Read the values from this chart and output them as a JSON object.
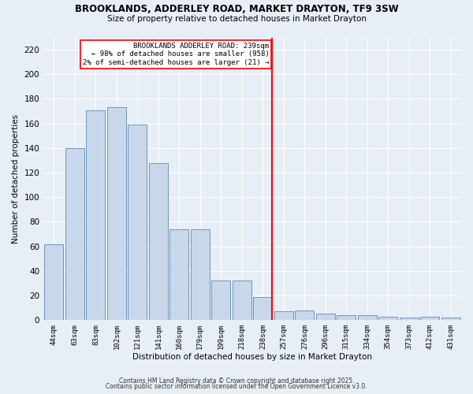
{
  "title": "BROOKLANDS, ADDERLEY ROAD, MARKET DRAYTON, TF9 3SW",
  "subtitle": "Size of property relative to detached houses in Market Drayton",
  "xlabel": "Distribution of detached houses by size in Market Drayton",
  "ylabel": "Number of detached properties",
  "bar_color": "#c8d8ea",
  "bar_edge_color": "#5a8ab5",
  "bar_values": [
    62,
    140,
    171,
    173,
    159,
    128,
    74,
    74,
    32,
    32,
    19,
    7,
    8,
    5,
    4,
    4,
    3,
    2,
    3,
    2
  ],
  "x_labels": [
    "44sqm",
    "63sqm",
    "83sqm",
    "102sqm",
    "121sqm",
    "141sqm",
    "160sqm",
    "179sqm",
    "199sqm",
    "218sqm",
    "238sqm",
    "257sqm",
    "276sqm",
    "296sqm",
    "315sqm",
    "334sqm",
    "354sqm",
    "373sqm",
    "412sqm",
    "431sqm"
  ],
  "vline_x": 10.45,
  "vline_color": "red",
  "annotation_text": "BROOKLANDS ADDERLEY ROAD: 239sqm\n← 98% of detached houses are smaller (958)\n2% of semi-detached houses are larger (21) →",
  "annotation_box_color": "white",
  "annotation_box_edge": "red",
  "footer1": "Contains HM Land Registry data © Crown copyright and database right 2025.",
  "footer2": "Contains public sector information licensed under the Open Government Licence v3.0.",
  "bg_color": "#e8eef5",
  "ylim": [
    0,
    230
  ],
  "yticks": [
    0,
    20,
    40,
    60,
    80,
    100,
    120,
    140,
    160,
    180,
    200,
    220
  ]
}
